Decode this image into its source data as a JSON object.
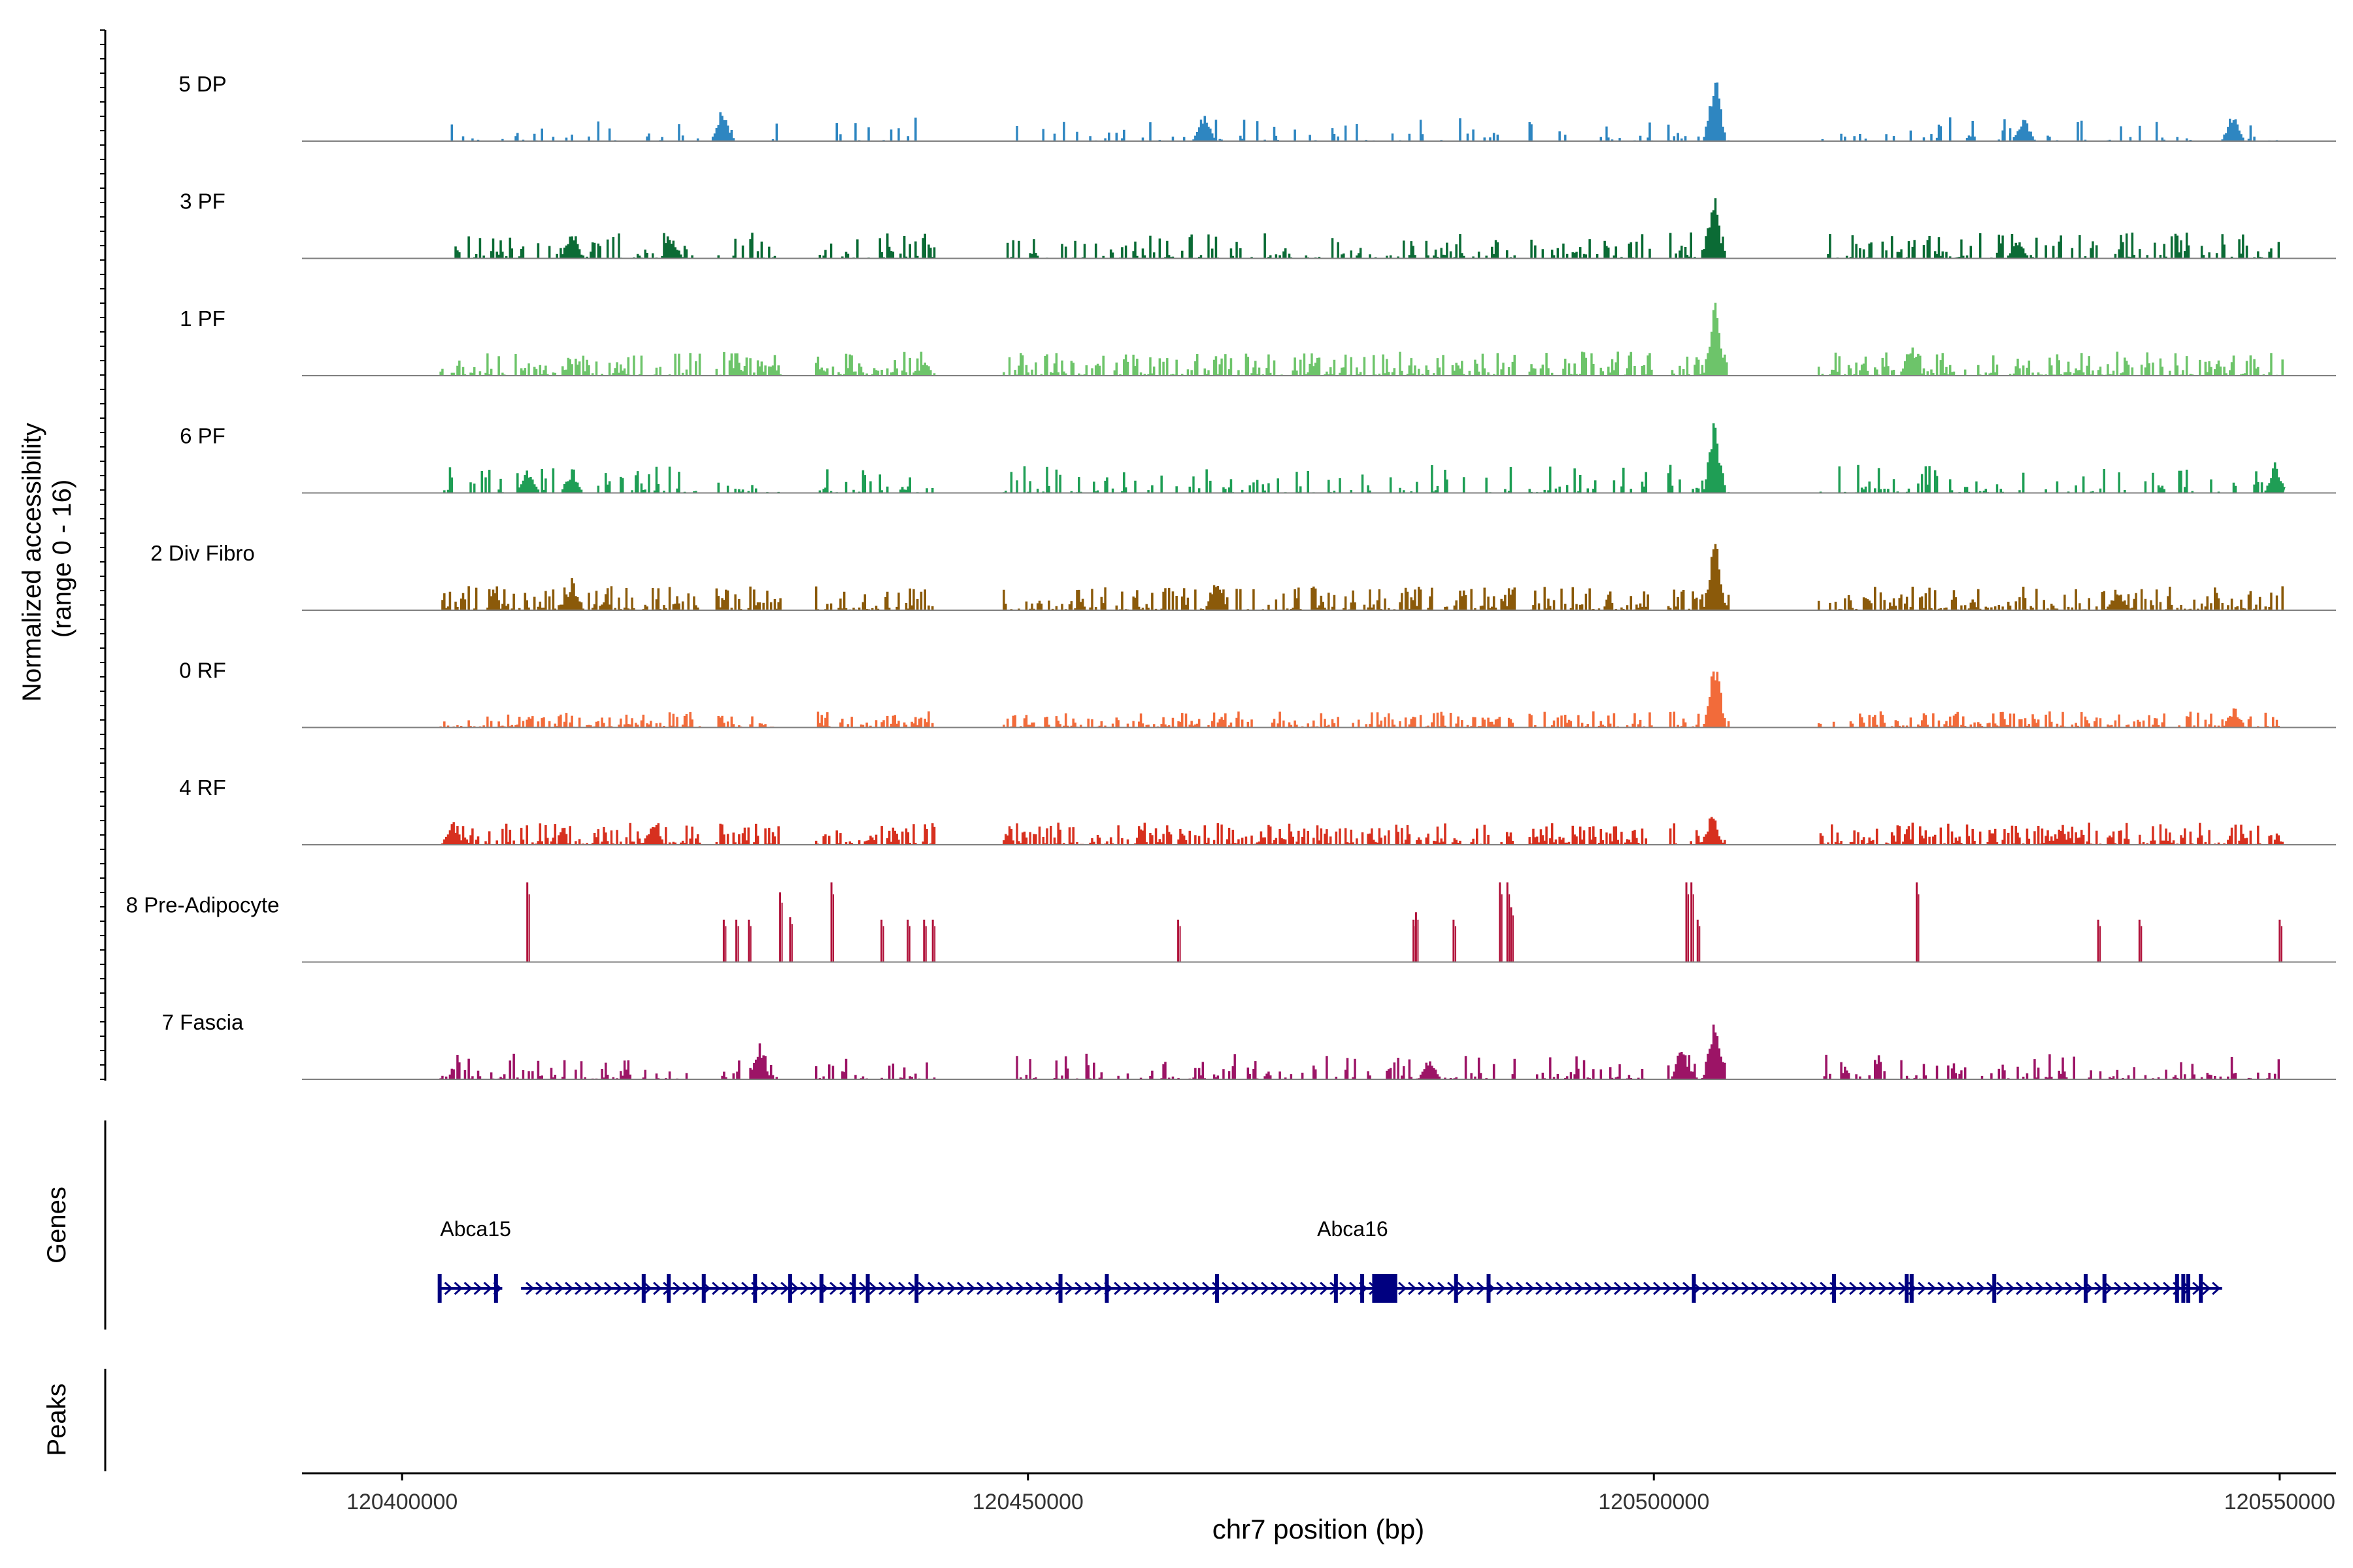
{
  "chart_data": {
    "type": "area",
    "title": "",
    "ylabel": "Normalized accessibility (range 0 - 16)",
    "xlabel": "chr7 position (bp)",
    "xlim": [
      120392000,
      120554500
    ],
    "ylim": [
      0,
      16
    ],
    "x_ticks": [
      120400000,
      120450000,
      120500000,
      120550000
    ],
    "x_tick_labels": [
      "120400000",
      "120450000",
      "120500000",
      "120550000"
    ],
    "panel_labels": {
      "genes": "Genes",
      "peaks": "Peaks"
    },
    "series": [
      {
        "name": "5 DP",
        "color": "#2E86C1",
        "kind": "sparse",
        "density": 0.28,
        "base": 2.4,
        "spikes": [
          [
            120425500,
            7
          ],
          [
            120464000,
            6
          ],
          [
            120504800,
            16
          ],
          [
            120529500,
            5.5
          ],
          [
            120546200,
            6.5
          ]
        ]
      },
      {
        "name": "3 PF",
        "color": "#0B6B35",
        "kind": "sparse",
        "density": 0.55,
        "base": 2.6,
        "spikes": [
          [
            120413500,
            7
          ],
          [
            120421500,
            4.5
          ],
          [
            120504700,
            14.5
          ],
          [
            120529000,
            4
          ]
        ]
      },
      {
        "name": "1 PF",
        "color": "#6DC46A",
        "kind": "dense",
        "density": 0.75,
        "base": 2.4,
        "spikes": [
          [
            120504800,
            16
          ],
          [
            120520500,
            7.5
          ]
        ]
      },
      {
        "name": "6 PF",
        "color": "#1F9E55",
        "kind": "sparse",
        "density": 0.45,
        "base": 2.8,
        "spikes": [
          [
            120410000,
            5
          ],
          [
            120413500,
            5
          ],
          [
            120504800,
            16
          ],
          [
            120549600,
            6.5
          ]
        ]
      },
      {
        "name": "2 Div Fibro",
        "color": "#8B5A0A",
        "kind": "dense",
        "density": 0.7,
        "base": 2.4,
        "spikes": [
          [
            120413500,
            6.5
          ],
          [
            120465000,
            7.5
          ],
          [
            120504800,
            16
          ],
          [
            120537000,
            5
          ]
        ]
      },
      {
        "name": "0 RF",
        "color": "#F26B3A",
        "kind": "dense",
        "density": 0.7,
        "base": 1.6,
        "spikes": [
          [
            120504800,
            16
          ],
          [
            120546300,
            4.5
          ]
        ]
      },
      {
        "name": "4 RF",
        "color": "#D7301F",
        "kind": "dense",
        "density": 0.8,
        "base": 2.2,
        "spikes": [
          [
            120404000,
            5
          ],
          [
            120420000,
            5
          ],
          [
            120504600,
            7
          ]
        ]
      },
      {
        "name": "8 Pre-Adipocyte",
        "color": "#B0123A",
        "kind": "bars",
        "peaks": [
          120410000,
          120425700,
          120426700,
          120427700,
          120430200,
          120431000,
          120434300,
          120438300,
          120440400,
          120441700,
          120442400,
          120462000,
          120480800,
          120481000,
          120484000,
          120487700,
          120488300,
          120488600,
          120502600,
          120503000,
          120503500,
          120521000,
          120535500,
          120538800,
          120550000
        ],
        "heights": [
          16,
          8.5,
          8.5,
          8.5,
          14,
          9,
          16,
          8.5,
          8.5,
          8.5,
          8.5,
          8.5,
          8.5,
          10,
          8.5,
          16,
          16,
          11,
          16,
          16,
          8.5,
          16,
          8.5,
          8.5,
          8.5
        ]
      },
      {
        "name": "7 Fascia",
        "color": "#9C1466",
        "kind": "sparse",
        "density": 0.5,
        "base": 2.6,
        "spikes": [
          [
            120428500,
            7.5
          ],
          [
            120482000,
            5
          ],
          [
            120504800,
            16
          ],
          [
            120502200,
            7
          ]
        ]
      }
    ],
    "genes": [
      {
        "name": "Abca15",
        "start": 120403000,
        "end": 120408000,
        "exons": [
          120403000,
          120407500
        ]
      },
      {
        "name": "Abca16",
        "start": 120409500,
        "end": 120545400,
        "exons": [
          120419300,
          120421300,
          120424100,
          120428200,
          120431000,
          120433500,
          120436100,
          120437200,
          120441100,
          120452600,
          120456300,
          120465100,
          120474600,
          120476700,
          120484200,
          120486800,
          120503200,
          120514400,
          120520200,
          120520600,
          120527200,
          120534500,
          120536000,
          120541800,
          120542300,
          120542700,
          120543700
        ],
        "cds_block": [
          120477500,
          120479500
        ]
      }
    ],
    "peaks": []
  }
}
